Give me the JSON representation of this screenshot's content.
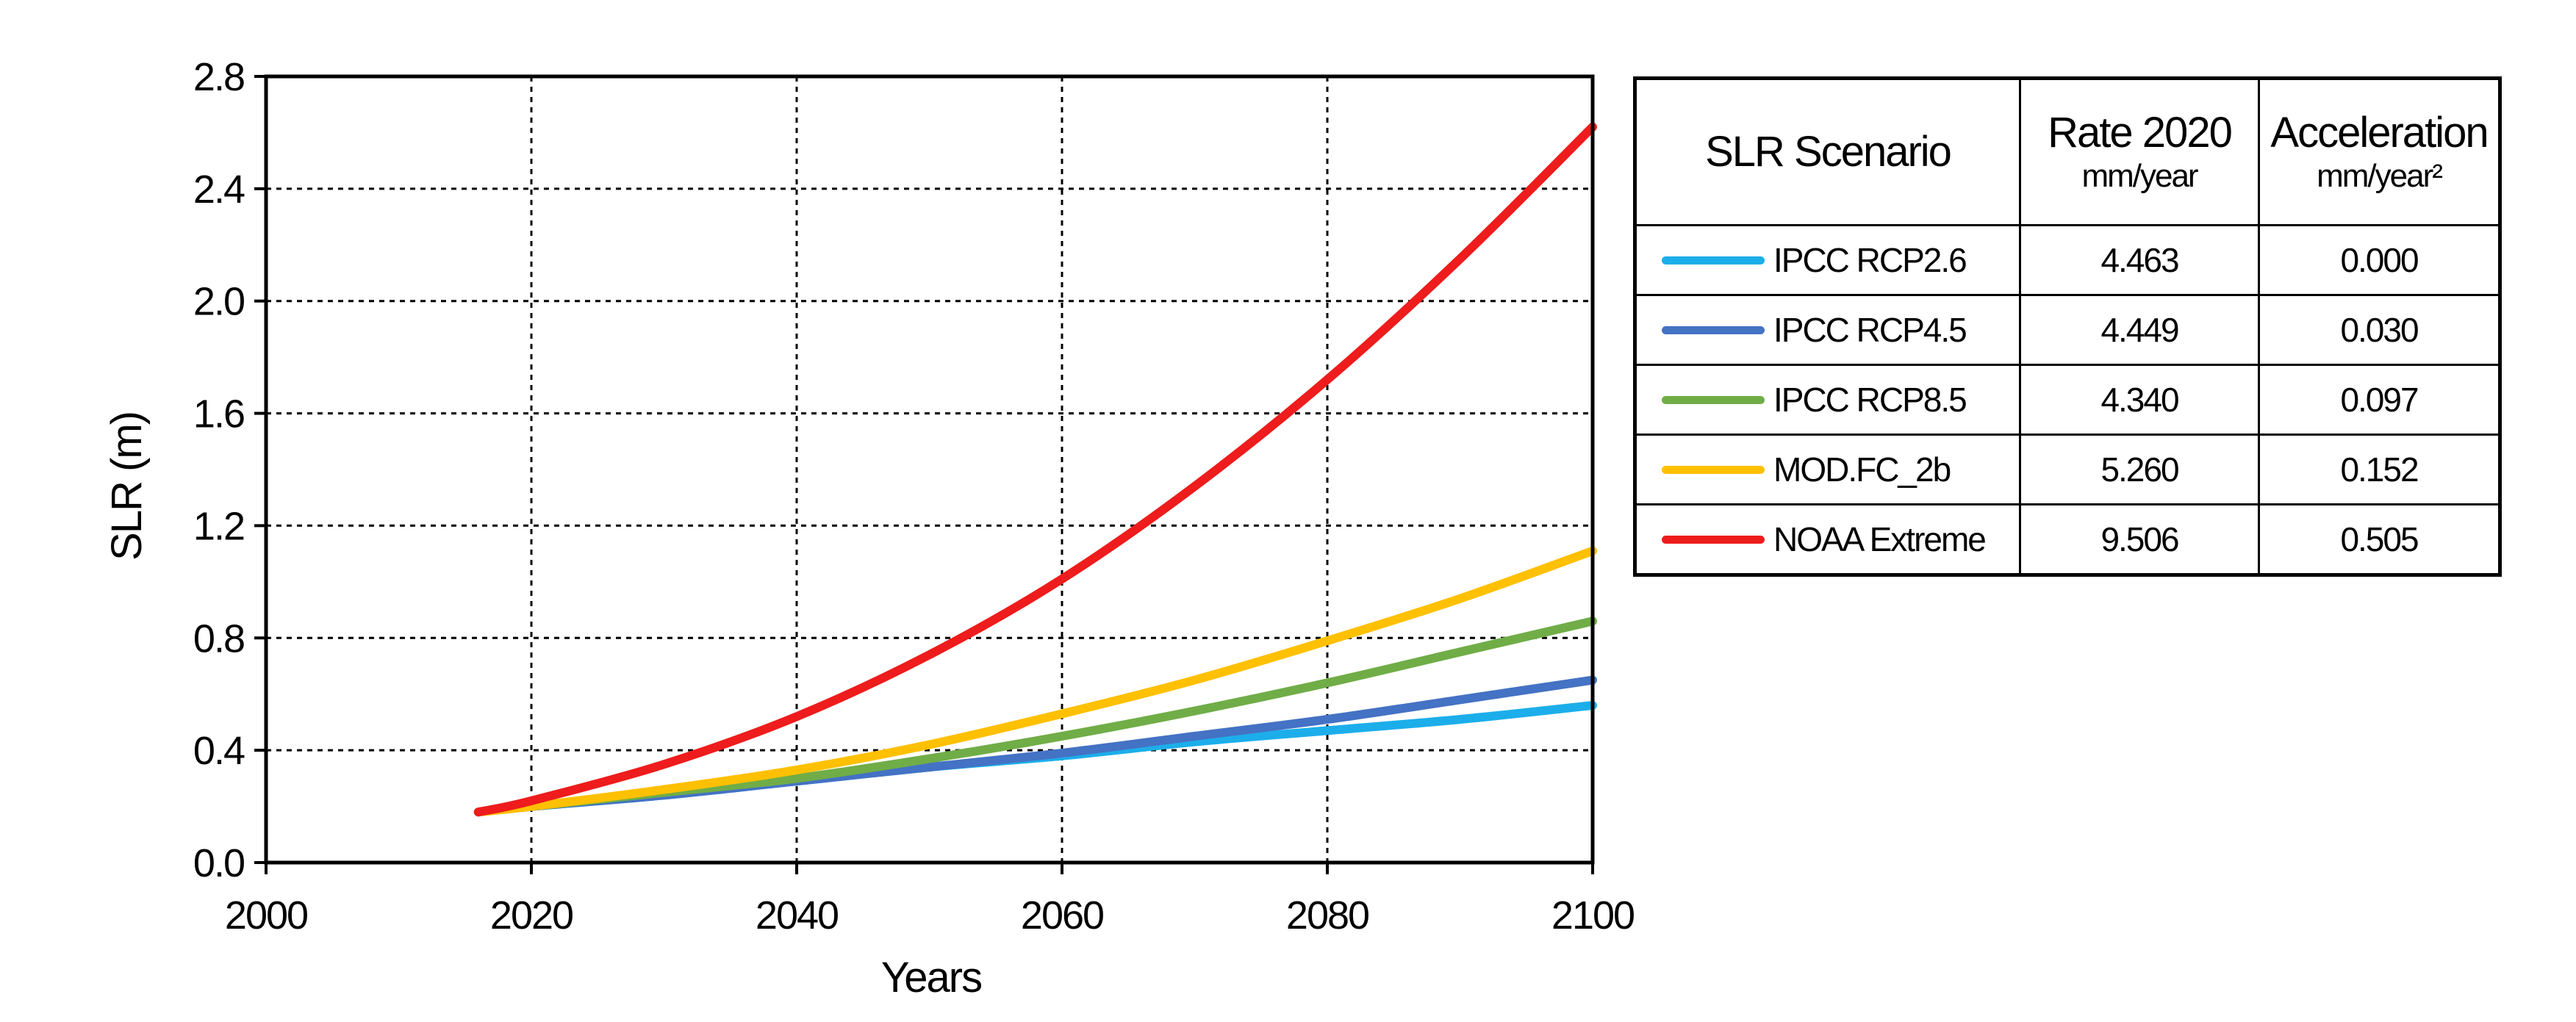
{
  "chart_data": {
    "type": "line",
    "xlabel": "Years",
    "ylabel": "SLR (m)",
    "xlim": [
      2000,
      2100
    ],
    "ylim": [
      0.0,
      2.8
    ],
    "xticks": [
      2000,
      2020,
      2040,
      2060,
      2080,
      2100
    ],
    "xtick_labels": [
      "2000",
      "2020",
      "2040",
      "2060",
      "2080",
      "2100"
    ],
    "yticks": [
      0.0,
      0.4,
      0.8,
      1.2,
      1.6,
      2.0,
      2.4,
      2.8
    ],
    "ytick_labels": [
      "0.0",
      "0.4",
      "0.8",
      "1.2",
      "1.6",
      "2.0",
      "2.4",
      "2.8"
    ],
    "grid": true,
    "x": [
      2016,
      2020,
      2030,
      2040,
      2050,
      2060,
      2070,
      2080,
      2090,
      2100
    ],
    "series": [
      {
        "name": "IPCC RCP2.6",
        "color": "#1CAEEA",
        "values": [
          0.18,
          0.2,
          0.24,
          0.29,
          0.34,
          0.38,
          0.43,
          0.47,
          0.51,
          0.56
        ]
      },
      {
        "name": "IPCC RCP4.5",
        "color": "#4472C4",
        "values": [
          0.18,
          0.2,
          0.24,
          0.29,
          0.34,
          0.39,
          0.45,
          0.51,
          0.58,
          0.65
        ]
      },
      {
        "name": "IPCC RCP8.5",
        "color": "#70AD47",
        "values": [
          0.18,
          0.2,
          0.25,
          0.3,
          0.37,
          0.45,
          0.54,
          0.64,
          0.75,
          0.86
        ]
      },
      {
        "name": "MOD.FC_2b",
        "color": "#FFC000",
        "values": [
          0.18,
          0.2,
          0.26,
          0.33,
          0.42,
          0.53,
          0.65,
          0.79,
          0.94,
          1.11
        ]
      },
      {
        "name": "NOAA Extreme",
        "color": "#EE1C1C",
        "values": [
          0.18,
          0.22,
          0.35,
          0.52,
          0.74,
          1.01,
          1.34,
          1.72,
          2.15,
          2.62
        ]
      }
    ]
  },
  "table": {
    "headers": {
      "scenario": "SLR Scenario",
      "rate": "Rate 2020",
      "rate_unit": "mm/year",
      "acceleration": "Acceleration",
      "acceleration_unit": "mm/year²"
    },
    "rows": [
      {
        "name": "IPCC RCP2.6",
        "color": "#1CAEEA",
        "rate": "4.463",
        "acceleration": "0.000"
      },
      {
        "name": "IPCC RCP4.5",
        "color": "#4472C4",
        "rate": "4.449",
        "acceleration": "0.030"
      },
      {
        "name": "IPCC RCP8.5",
        "color": "#70AD47",
        "rate": "4.340",
        "acceleration": "0.097"
      },
      {
        "name": "MOD.FC_2b",
        "color": "#FFC000",
        "rate": "5.260",
        "acceleration": "0.152"
      },
      {
        "name": "NOAA Extreme",
        "color": "#EE1C1C",
        "rate": "9.506",
        "acceleration": "0.505"
      }
    ]
  }
}
